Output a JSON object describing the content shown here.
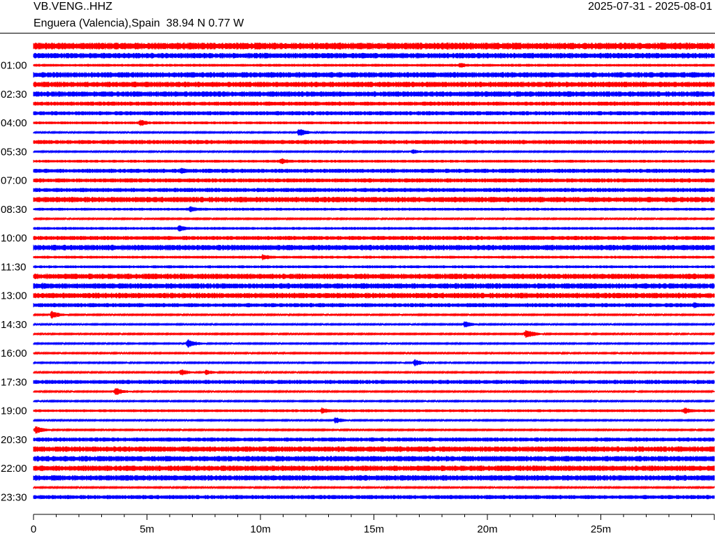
{
  "header": {
    "station": "VB.VENG..HHZ",
    "location": "Enguera (Valencia),Spain  38.94 N 0.77 W",
    "date_range": "2025-07-31 - 2025-08-01"
  },
  "colors": {
    "red_trace": "#ff0000",
    "blue_trace": "#0000ff",
    "axis": "#000000"
  },
  "chart_data": {
    "type": "line",
    "title": "",
    "xlabel": "",
    "ylabel": "",
    "xlim_minutes": [
      0,
      30
    ],
    "row_count": 48,
    "row_interval_minutes": 30,
    "row_colors": [
      "red",
      "blue"
    ],
    "hour_labels": [
      {
        "row": 2,
        "label": "01:00"
      },
      {
        "row": 5,
        "label": "02:30"
      },
      {
        "row": 8,
        "label": "04:00"
      },
      {
        "row": 11,
        "label": "05:30"
      },
      {
        "row": 14,
        "label": "07:00"
      },
      {
        "row": 17,
        "label": "08:30"
      },
      {
        "row": 20,
        "label": "10:00"
      },
      {
        "row": 23,
        "label": "11:30"
      },
      {
        "row": 26,
        "label": "13:00"
      },
      {
        "row": 29,
        "label": "14:30"
      },
      {
        "row": 32,
        "label": "16:00"
      },
      {
        "row": 35,
        "label": "17:30"
      },
      {
        "row": 38,
        "label": "19:00"
      },
      {
        "row": 41,
        "label": "20:30"
      },
      {
        "row": 44,
        "label": "22:00"
      },
      {
        "row": 47,
        "label": "23:30"
      }
    ],
    "x_ticks": [
      {
        "value": 0,
        "label": "0"
      },
      {
        "value": 5,
        "label": "5m"
      },
      {
        "value": 10,
        "label": "10m"
      },
      {
        "value": 15,
        "label": "15m"
      },
      {
        "value": 20,
        "label": "20m"
      },
      {
        "value": 25,
        "label": "25m"
      }
    ],
    "noise_levels": [
      5,
      4,
      2,
      4,
      4,
      4,
      3,
      3,
      2,
      1,
      3,
      1,
      2,
      3,
      3,
      3,
      4,
      2,
      1,
      2,
      3,
      4,
      2,
      2,
      4,
      4,
      4,
      3,
      1,
      1,
      1,
      1,
      1,
      1,
      1,
      3,
      1,
      1,
      2,
      1,
      1,
      3,
      4,
      4,
      4,
      4,
      1,
      3
    ],
    "events": [
      {
        "row": 2,
        "minute": 18.8,
        "amp": 4
      },
      {
        "row": 3,
        "minute": 10.5,
        "amp": 5
      },
      {
        "row": 5,
        "minute": 13.5,
        "amp": 4
      },
      {
        "row": 6,
        "minute": 17.5,
        "amp": 4
      },
      {
        "row": 8,
        "minute": 4.7,
        "amp": 5
      },
      {
        "row": 9,
        "minute": 11.7,
        "amp": 6
      },
      {
        "row": 11,
        "minute": 16.7,
        "amp": 4
      },
      {
        "row": 12,
        "minute": 10.9,
        "amp": 5
      },
      {
        "row": 13,
        "minute": 6.5,
        "amp": 5
      },
      {
        "row": 17,
        "minute": 6.9,
        "amp": 5
      },
      {
        "row": 19,
        "minute": 6.4,
        "amp": 5
      },
      {
        "row": 21,
        "minute": 28.6,
        "amp": 5
      },
      {
        "row": 22,
        "minute": 10.1,
        "amp": 5
      },
      {
        "row": 25,
        "minute": 0.4,
        "amp": 5
      },
      {
        "row": 27,
        "minute": 29.1,
        "amp": 5
      },
      {
        "row": 28,
        "minute": 0.8,
        "amp": 6
      },
      {
        "row": 29,
        "minute": 19.0,
        "amp": 5
      },
      {
        "row": 30,
        "minute": 21.7,
        "amp": 7
      },
      {
        "row": 31,
        "minute": 6.8,
        "amp": 7
      },
      {
        "row": 33,
        "minute": 16.8,
        "amp": 5
      },
      {
        "row": 34,
        "minute": 6.5,
        "amp": 5
      },
      {
        "row": 34,
        "minute": 7.6,
        "amp": 4
      },
      {
        "row": 36,
        "minute": 3.6,
        "amp": 6
      },
      {
        "row": 38,
        "minute": 12.7,
        "amp": 5
      },
      {
        "row": 38,
        "minute": 28.7,
        "amp": 5
      },
      {
        "row": 39,
        "minute": 13.3,
        "amp": 5
      },
      {
        "row": 40,
        "minute": 0.1,
        "amp": 6
      },
      {
        "row": 44,
        "minute": 14.5,
        "amp": 4
      }
    ]
  }
}
